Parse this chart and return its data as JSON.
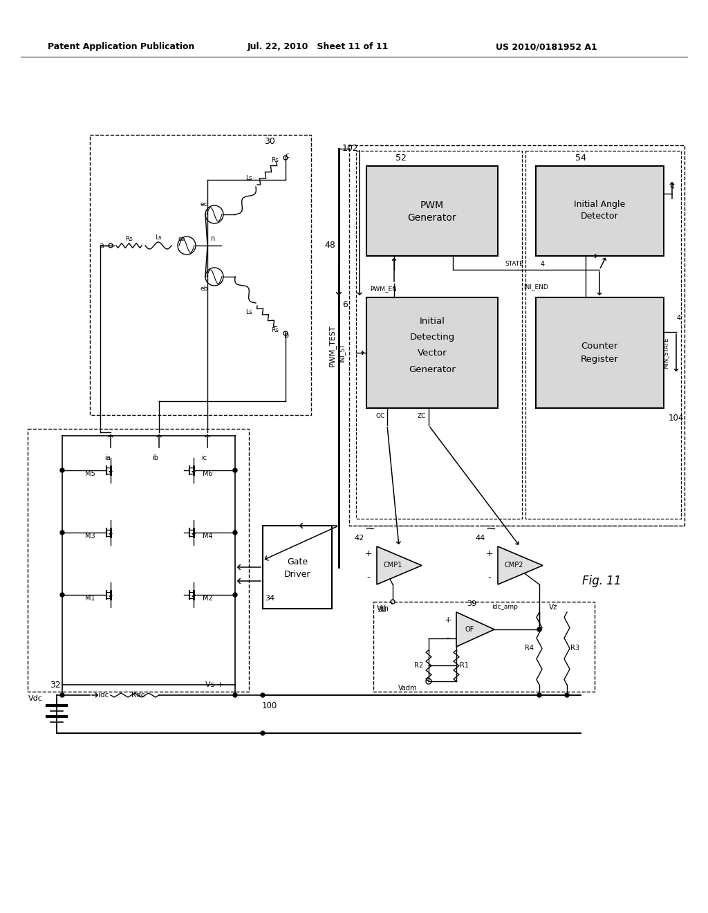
{
  "header_left": "Patent Application Publication",
  "header_mid": "Jul. 22, 2010   Sheet 11 of 11",
  "header_right": "US 2010/0181952 A1",
  "fig_label": "Fig. 11",
  "bg_color": "#ffffff",
  "lc": "#000000",
  "gray_fill": "#d8d8d8",
  "light_gray": "#eeeeee"
}
